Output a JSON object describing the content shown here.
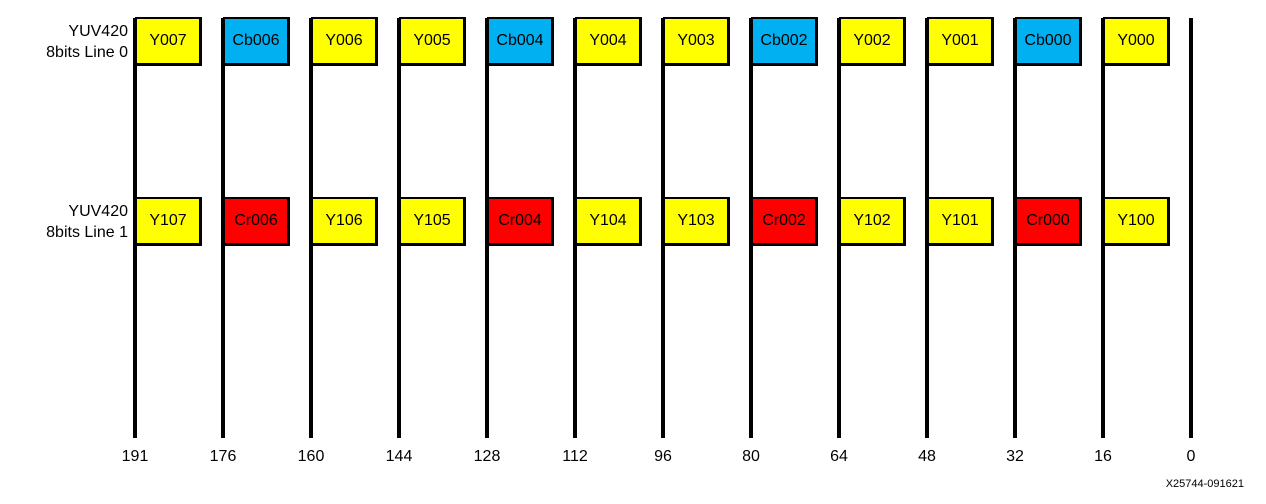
{
  "rows": [
    {
      "label_line1": "YUV420",
      "label_line2": "8bits Line 0",
      "cells": [
        {
          "text": "Y007",
          "color": "#ffff00"
        },
        {
          "text": "Cb006",
          "color": "#00b0f0"
        },
        {
          "text": "Y006",
          "color": "#ffff00"
        },
        {
          "text": "Y005",
          "color": "#ffff00"
        },
        {
          "text": "Cb004",
          "color": "#00b0f0"
        },
        {
          "text": "Y004",
          "color": "#ffff00"
        },
        {
          "text": "Y003",
          "color": "#ffff00"
        },
        {
          "text": "Cb002",
          "color": "#00b0f0"
        },
        {
          "text": "Y002",
          "color": "#ffff00"
        },
        {
          "text": "Y001",
          "color": "#ffff00"
        },
        {
          "text": "Cb000",
          "color": "#00b0f0"
        },
        {
          "text": "Y000",
          "color": "#ffff00"
        }
      ]
    },
    {
      "label_line1": "YUV420",
      "label_line2": "8bits Line 1",
      "cells": [
        {
          "text": "Y107",
          "color": "#ffff00"
        },
        {
          "text": "Cr006",
          "color": "#ff0000"
        },
        {
          "text": "Y106",
          "color": "#ffff00"
        },
        {
          "text": "Y105",
          "color": "#ffff00"
        },
        {
          "text": "Cr004",
          "color": "#ff0000"
        },
        {
          "text": "Y104",
          "color": "#ffff00"
        },
        {
          "text": "Y103",
          "color": "#ffff00"
        },
        {
          "text": "Cr002",
          "color": "#ff0000"
        },
        {
          "text": "Y102",
          "color": "#ffff00"
        },
        {
          "text": "Y101",
          "color": "#ffff00"
        },
        {
          "text": "Cr000",
          "color": "#ff0000"
        },
        {
          "text": "Y100",
          "color": "#ffff00"
        }
      ]
    }
  ],
  "bit_labels": [
    "191",
    "176",
    "160",
    "144",
    "128",
    "112",
    "96",
    "80",
    "64",
    "48",
    "32",
    "16",
    "0"
  ],
  "figure_id": "X25744-091621"
}
